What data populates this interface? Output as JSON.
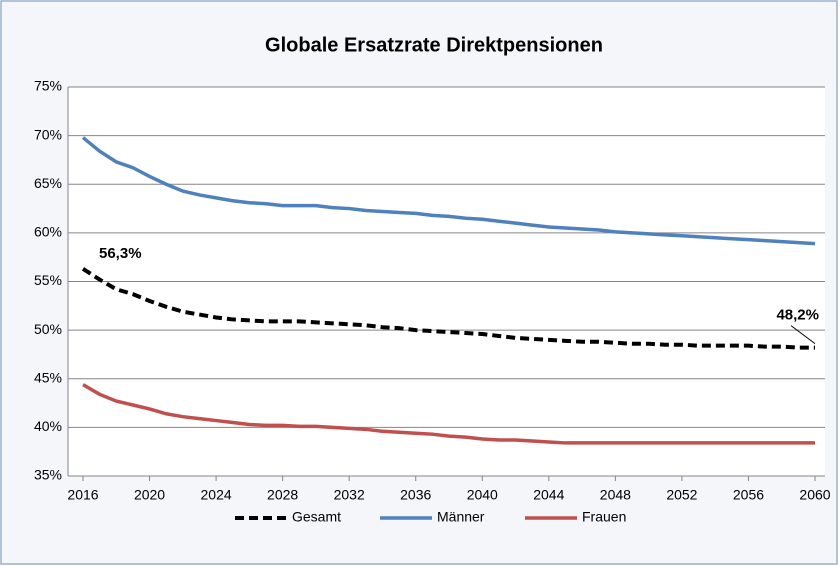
{
  "chart_data": {
    "type": "line",
    "title": "Globale Ersatzrate Direktpensionen",
    "x": [
      2016,
      2017,
      2018,
      2019,
      2020,
      2021,
      2022,
      2023,
      2024,
      2025,
      2026,
      2027,
      2028,
      2029,
      2030,
      2031,
      2032,
      2033,
      2034,
      2035,
      2036,
      2037,
      2038,
      2039,
      2040,
      2041,
      2042,
      2043,
      2044,
      2045,
      2046,
      2047,
      2048,
      2049,
      2050,
      2051,
      2052,
      2053,
      2054,
      2055,
      2056,
      2057,
      2058,
      2059,
      2060
    ],
    "xlim": [
      2016,
      2060
    ],
    "xticks": [
      2016,
      2020,
      2024,
      2028,
      2032,
      2036,
      2040,
      2044,
      2048,
      2052,
      2056,
      2060
    ],
    "ylim": [
      35,
      75
    ],
    "yticks": [
      {
        "value": 35,
        "label": "35%"
      },
      {
        "value": 40,
        "label": "40%"
      },
      {
        "value": 45,
        "label": "45%"
      },
      {
        "value": 50,
        "label": "50%"
      },
      {
        "value": 55,
        "label": "55%"
      },
      {
        "value": 60,
        "label": "60%"
      },
      {
        "value": 65,
        "label": "65%"
      },
      {
        "value": 70,
        "label": "70%"
      },
      {
        "value": 75,
        "label": "75%"
      }
    ],
    "grid": true,
    "legend": "bottom",
    "series": [
      {
        "name": "Gesamt",
        "color": "#000000",
        "dashed": true,
        "values": [
          56.3,
          55.2,
          54.2,
          53.7,
          53.0,
          52.4,
          51.9,
          51.6,
          51.3,
          51.1,
          51.0,
          50.9,
          50.9,
          50.9,
          50.8,
          50.7,
          50.6,
          50.5,
          50.3,
          50.2,
          50.0,
          49.9,
          49.8,
          49.7,
          49.6,
          49.4,
          49.2,
          49.1,
          49.0,
          48.9,
          48.8,
          48.8,
          48.7,
          48.6,
          48.6,
          48.5,
          48.5,
          48.4,
          48.4,
          48.4,
          48.4,
          48.3,
          48.3,
          48.2,
          48.2
        ],
        "value_labels": [
          "56,3%",
          null,
          null,
          null,
          null,
          null,
          null,
          null,
          null,
          null,
          null,
          null,
          null,
          null,
          null,
          null,
          null,
          null,
          null,
          null,
          null,
          null,
          null,
          null,
          null,
          null,
          null,
          null,
          null,
          null,
          null,
          null,
          null,
          null,
          null,
          null,
          null,
          null,
          null,
          null,
          null,
          null,
          null,
          null,
          "48,2%"
        ]
      },
      {
        "name": "Männer",
        "color": "#4f81bd",
        "dashed": false,
        "values": [
          69.8,
          68.4,
          67.3,
          66.7,
          65.8,
          65.0,
          64.3,
          63.9,
          63.6,
          63.3,
          63.1,
          63.0,
          62.8,
          62.8,
          62.8,
          62.6,
          62.5,
          62.3,
          62.2,
          62.1,
          62.0,
          61.8,
          61.7,
          61.5,
          61.4,
          61.2,
          61.0,
          60.8,
          60.6,
          60.5,
          60.4,
          60.3,
          60.1,
          60.0,
          59.9,
          59.8,
          59.7,
          59.6,
          59.5,
          59.4,
          59.3,
          59.2,
          59.1,
          59.0,
          58.9
        ]
      },
      {
        "name": "Frauen",
        "color": "#c0504d",
        "dashed": false,
        "values": [
          44.4,
          43.4,
          42.7,
          42.3,
          41.9,
          41.4,
          41.1,
          40.9,
          40.7,
          40.5,
          40.3,
          40.2,
          40.2,
          40.1,
          40.1,
          40.0,
          39.9,
          39.8,
          39.6,
          39.5,
          39.4,
          39.3,
          39.1,
          39.0,
          38.8,
          38.7,
          38.7,
          38.6,
          38.5,
          38.4,
          38.4,
          38.4,
          38.4,
          38.4,
          38.4,
          38.4,
          38.4,
          38.4,
          38.4,
          38.4,
          38.4,
          38.4,
          38.4,
          38.4,
          38.4
        ]
      }
    ]
  }
}
